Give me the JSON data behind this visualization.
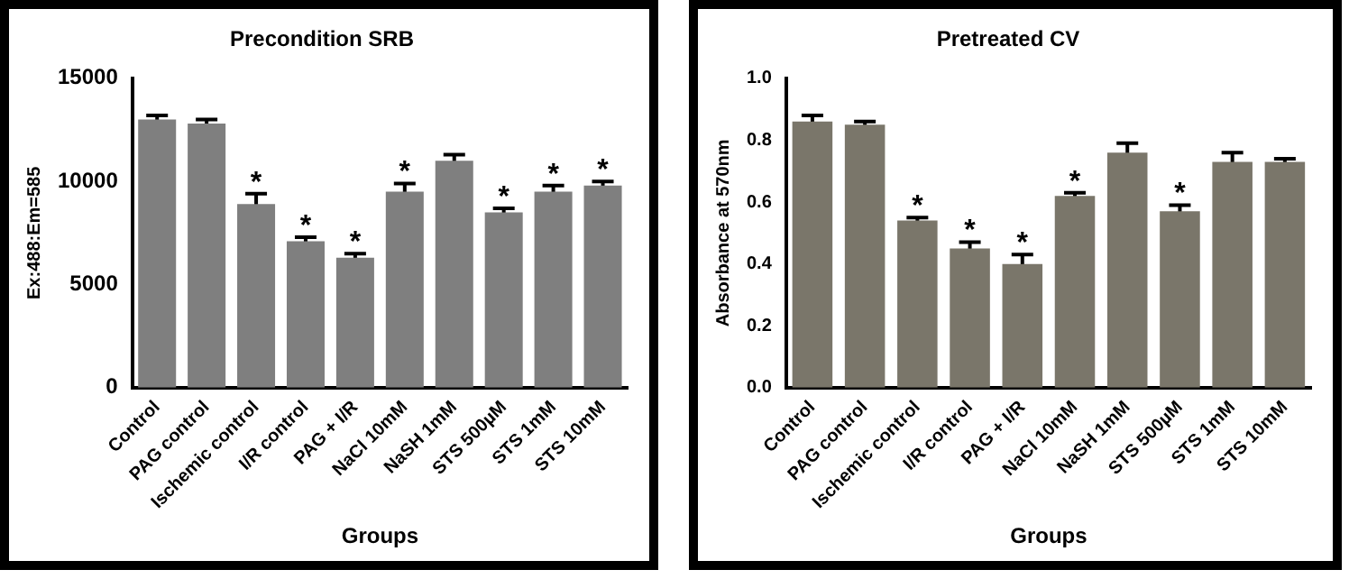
{
  "chart_data": [
    {
      "type": "bar",
      "title": "Precondition SRB",
      "xlabel": "Groups",
      "ylabel": "Ex:488:Em=585",
      "categories": [
        "Control",
        "PAG control",
        "Ischemic control",
        "I/R control",
        "PAG + I/R",
        "NaCl 10mM",
        "NaSH 1mM",
        "STS 500µM",
        "STS 1mM",
        "STS 10mM"
      ],
      "values": [
        13000,
        12800,
        8900,
        7100,
        6300,
        9500,
        11000,
        8500,
        9500,
        9800
      ],
      "errors": [
        200,
        200,
        500,
        200,
        200,
        400,
        300,
        200,
        300,
        200
      ],
      "color": "#7f7f7f",
      "ylim": [
        0,
        15000
      ],
      "yticks": [
        0,
        5000,
        10000,
        15000
      ],
      "grid": false,
      "annotations": [
        {
          "text": "*",
          "x": "Ischemic control",
          "y": 9400
        },
        {
          "text": "*",
          "x": "I/R control",
          "y": 7300
        },
        {
          "text": "*",
          "x": "PAG + I/R",
          "y": 6500
        },
        {
          "text": "*",
          "x": "NaCl 10mM",
          "y": 9900
        },
        {
          "text": "*",
          "x": "STS 500µM",
          "y": 8700
        },
        {
          "text": "*",
          "x": "STS 1mM",
          "y": 9800
        },
        {
          "text": "*",
          "x": "STS 10mM",
          "y": 10000
        }
      ]
    },
    {
      "type": "bar",
      "title": "Pretreated CV",
      "xlabel": "Groups",
      "ylabel": "Absorbance at 570nm",
      "categories": [
        "Control",
        "PAG control",
        "Ischemic control",
        "I/R control",
        "PAG + I/R",
        "NaCl 10mM",
        "NaSH 1mM",
        "STS 500µM",
        "STS 1mM",
        "STS 10mM"
      ],
      "values": [
        0.86,
        0.85,
        0.54,
        0.45,
        0.4,
        0.62,
        0.76,
        0.57,
        0.73,
        0.73
      ],
      "errors": [
        0.02,
        0.01,
        0.01,
        0.02,
        0.03,
        0.01,
        0.03,
        0.02,
        0.03,
        0.01
      ],
      "color": "#7a766a",
      "ylim": [
        0,
        1
      ],
      "yticks": [
        {
          "value": 0,
          "label": "0.0"
        },
        {
          "value": 0.2,
          "label": "0.2"
        },
        {
          "value": 0.4,
          "label": "0.4"
        },
        {
          "value": 0.6,
          "label": "0.6"
        },
        {
          "value": 0.8,
          "label": "0.8"
        },
        {
          "value": 1,
          "label": "1.0"
        }
      ],
      "grid": false,
      "annotations": [
        {
          "text": "*",
          "x": "Ischemic control",
          "y": 0.55
        },
        {
          "text": "*",
          "x": "I/R control",
          "y": 0.47
        },
        {
          "text": "*",
          "x": "PAG + I/R",
          "y": 0.43
        },
        {
          "text": "*",
          "x": "NaCl 10mM",
          "y": 0.63
        },
        {
          "text": "*",
          "x": "STS 500µM",
          "y": 0.59
        }
      ]
    }
  ]
}
